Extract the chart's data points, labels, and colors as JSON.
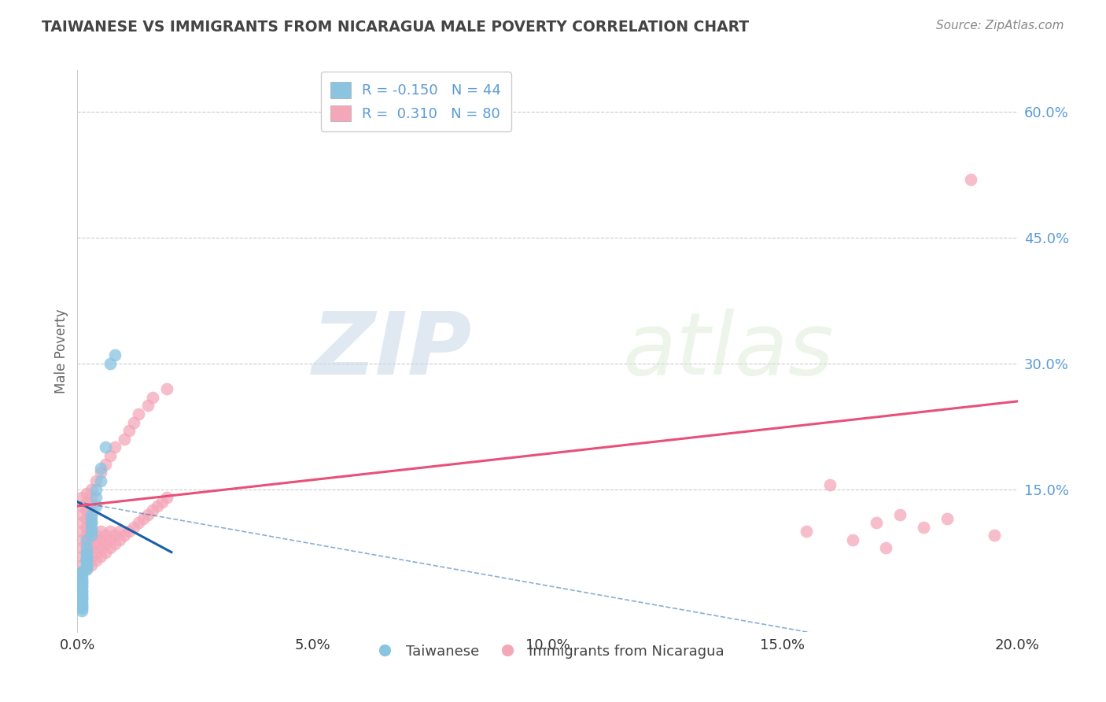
{
  "title": "TAIWANESE VS IMMIGRANTS FROM NICARAGUA MALE POVERTY CORRELATION CHART",
  "source": "Source: ZipAtlas.com",
  "ylabel": "Male Poverty",
  "xlim": [
    0.0,
    0.2
  ],
  "ylim": [
    -0.02,
    0.65
  ],
  "yticks": [
    0.15,
    0.3,
    0.45,
    0.6
  ],
  "ytick_labels": [
    "15.0%",
    "30.0%",
    "45.0%",
    "60.0%"
  ],
  "xticks": [
    0.0,
    0.05,
    0.1,
    0.15,
    0.2
  ],
  "xtick_labels": [
    "0.0%",
    "5.0%",
    "10.0%",
    "15.0%",
    "20.0%"
  ],
  "grid_color": "#cccccc",
  "background_color": "#ffffff",
  "watermark_zip": "ZIP",
  "watermark_atlas": "atlas",
  "legend_r1": "R = -0.150   N = 44",
  "legend_r2": "R =  0.310   N = 80",
  "blue_color": "#89c4e1",
  "pink_color": "#f4a7b9",
  "blue_line_color": "#1a5fa8",
  "pink_line_color": "#e8507a",
  "title_color": "#444444",
  "tick_color": "#5b9bd5",
  "source_color": "#888888",
  "taiwanese_x": [
    0.001,
    0.001,
    0.001,
    0.001,
    0.001,
    0.001,
    0.001,
    0.001,
    0.001,
    0.001,
    0.001,
    0.001,
    0.001,
    0.001,
    0.001,
    0.001,
    0.001,
    0.001,
    0.001,
    0.001,
    0.002,
    0.002,
    0.002,
    0.002,
    0.002,
    0.002,
    0.002,
    0.002,
    0.002,
    0.002,
    0.003,
    0.003,
    0.003,
    0.003,
    0.003,
    0.003,
    0.004,
    0.004,
    0.004,
    0.005,
    0.005,
    0.006,
    0.007,
    0.008
  ],
  "taiwanese_y": [
    0.005,
    0.008,
    0.01,
    0.012,
    0.015,
    0.018,
    0.02,
    0.022,
    0.025,
    0.028,
    0.03,
    0.033,
    0.035,
    0.038,
    0.04,
    0.042,
    0.045,
    0.048,
    0.05,
    0.052,
    0.055,
    0.058,
    0.06,
    0.063,
    0.065,
    0.068,
    0.07,
    0.075,
    0.08,
    0.09,
    0.095,
    0.1,
    0.105,
    0.11,
    0.115,
    0.12,
    0.13,
    0.14,
    0.15,
    0.16,
    0.175,
    0.2,
    0.3,
    0.31
  ],
  "nicaragua_x": [
    0.001,
    0.001,
    0.001,
    0.001,
    0.001,
    0.001,
    0.001,
    0.001,
    0.001,
    0.001,
    0.002,
    0.002,
    0.002,
    0.002,
    0.002,
    0.002,
    0.002,
    0.002,
    0.002,
    0.002,
    0.003,
    0.003,
    0.003,
    0.003,
    0.003,
    0.003,
    0.003,
    0.003,
    0.003,
    0.003,
    0.004,
    0.004,
    0.004,
    0.004,
    0.004,
    0.005,
    0.005,
    0.005,
    0.005,
    0.005,
    0.006,
    0.006,
    0.006,
    0.006,
    0.007,
    0.007,
    0.007,
    0.007,
    0.008,
    0.008,
    0.008,
    0.009,
    0.009,
    0.01,
    0.01,
    0.011,
    0.011,
    0.012,
    0.012,
    0.013,
    0.013,
    0.014,
    0.015,
    0.015,
    0.016,
    0.016,
    0.017,
    0.018,
    0.019,
    0.019,
    0.16,
    0.17,
    0.175,
    0.18,
    0.185,
    0.19,
    0.195,
    0.155,
    0.165,
    0.172
  ],
  "nicaragua_y": [
    0.05,
    0.06,
    0.07,
    0.08,
    0.09,
    0.1,
    0.11,
    0.12,
    0.13,
    0.14,
    0.055,
    0.065,
    0.075,
    0.085,
    0.095,
    0.105,
    0.115,
    0.125,
    0.135,
    0.145,
    0.06,
    0.07,
    0.08,
    0.09,
    0.1,
    0.11,
    0.12,
    0.13,
    0.14,
    0.15,
    0.065,
    0.075,
    0.085,
    0.095,
    0.16,
    0.07,
    0.08,
    0.09,
    0.1,
    0.17,
    0.075,
    0.085,
    0.095,
    0.18,
    0.08,
    0.09,
    0.1,
    0.19,
    0.085,
    0.095,
    0.2,
    0.09,
    0.1,
    0.095,
    0.21,
    0.1,
    0.22,
    0.105,
    0.23,
    0.11,
    0.24,
    0.115,
    0.12,
    0.25,
    0.125,
    0.26,
    0.13,
    0.135,
    0.14,
    0.27,
    0.155,
    0.11,
    0.12,
    0.105,
    0.115,
    0.52,
    0.095,
    0.1,
    0.09,
    0.08
  ],
  "tw_trend_x": [
    0.0,
    0.02
  ],
  "tw_trend_y": [
    0.135,
    0.075
  ],
  "ni_trend_x": [
    0.0,
    0.2
  ],
  "ni_trend_y": [
    0.13,
    0.255
  ]
}
